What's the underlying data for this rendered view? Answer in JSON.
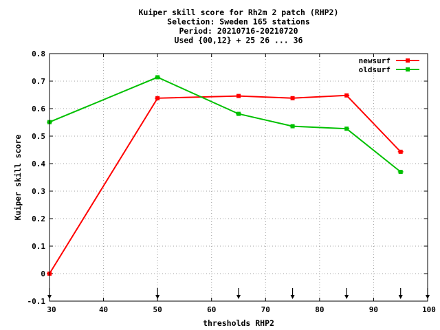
{
  "chart_data": {
    "type": "line",
    "title_lines": [
      "Kuiper skill score  for Rh2m 2 patch (RHP2)",
      "Selection: Sweden    165 stations",
      "Period: 20210716-20210720",
      "Used {00,12} + 25 26 ... 36"
    ],
    "xlabel": "thresholds RHP2",
    "ylabel": "Kuiper skill score",
    "xlim": [
      30,
      100
    ],
    "ylim": [
      -0.1,
      0.8
    ],
    "xticks": [
      30,
      40,
      50,
      60,
      70,
      80,
      90,
      100
    ],
    "yticks": [
      -0.1,
      0,
      0.1,
      0.2,
      0.3,
      0.4,
      0.5,
      0.6,
      0.7,
      0.8
    ],
    "xtick_labels": [
      "30",
      "40",
      "50",
      "60",
      "70",
      "80",
      "90",
      "100"
    ],
    "ytick_labels": [
      "-0.1",
      "0",
      "0.1",
      "0.2",
      "0.3",
      "0.4",
      "0.5",
      "0.6",
      "0.7",
      "0.8"
    ],
    "grid": true,
    "legend_position": "top-right",
    "arrow_markers_x": [
      30,
      50,
      65,
      75,
      85,
      95,
      100
    ],
    "series": [
      {
        "name": "newsurf",
        "color": "#ff0000",
        "x": [
          30,
          50,
          65,
          75,
          85,
          95
        ],
        "y": [
          0.0,
          0.638,
          0.646,
          0.638,
          0.648,
          0.443
        ]
      },
      {
        "name": "oldsurf",
        "color": "#00c000",
        "x": [
          30,
          50,
          65,
          75,
          85,
          95
        ],
        "y": [
          0.551,
          0.714,
          0.581,
          0.536,
          0.527,
          0.37
        ]
      }
    ]
  }
}
